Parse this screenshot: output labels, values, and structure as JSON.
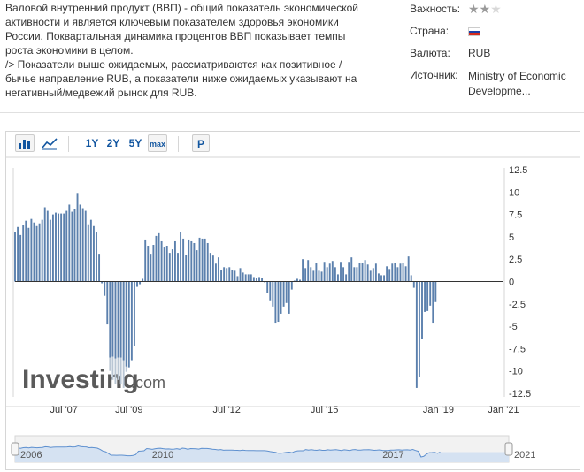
{
  "description": {
    "paragraph": "Валовой внутренний продукт (ВВП) - общий показатель экономической активности и является ключевым показателем здоровья экономики России. Поквартальная динамика процентов ВВП показывает темпы роста экономики в целом.",
    "note": "/> Показатели выше ожидаемых, рассматриваются как позитивное / бычье направление RUB, а показатели ниже ожидаемых указывают на негативный/медвежий рынок для RUB."
  },
  "info": {
    "importance_label": "Важность:",
    "importance_stars": 2,
    "importance_max": 3,
    "country_label": "Страна:",
    "country_icon": "russia-flag-icon",
    "currency_label": "Валюта:",
    "currency_value": "RUB",
    "source_label": "Источник:",
    "source_value": "Ministry of Economic Developme..."
  },
  "toolbar": {
    "bar_chart_icon": "bar-chart-icon",
    "line_chart_icon": "line-chart-icon",
    "range_1y": "1Y",
    "range_2y": "2Y",
    "range_5y": "5Y",
    "range_max": "max",
    "p_button": "P"
  },
  "watermark": {
    "brand": "Investing",
    "suffix": ".com"
  },
  "colors": {
    "bar": "#5b80ad",
    "bar_forecast": "#b9c6d4",
    "link": "#1256a0",
    "navigator_fill": "#d5e2f2",
    "navigator_line": "#5e90cf"
  },
  "chart_data": {
    "type": "bar",
    "title": "",
    "xlabel": "",
    "ylabel": "",
    "ylim": [
      -12.5,
      12.5
    ],
    "y_ticks": [
      "12.5",
      "10",
      "7.5",
      "5",
      "2.5",
      "0",
      "-2.5",
      "-5",
      "-7.5",
      "-10",
      "-12.5"
    ],
    "x_start": "2006-01",
    "x_end": "2021-01",
    "x_ticks": [
      {
        "date": "2007-07",
        "label": "Jul '07"
      },
      {
        "date": "2009-07",
        "label": "Jul '09"
      },
      {
        "date": "2012-07",
        "label": "Jul '12"
      },
      {
        "date": "2015-07",
        "label": "Jul '15"
      },
      {
        "date": "2019-01",
        "label": "Jan '19"
      },
      {
        "date": "2021-01",
        "label": "Jan '21"
      }
    ],
    "grid": false,
    "series": [
      {
        "values": [
          {
            "date": "2006-01",
            "actual": 5.5
          },
          {
            "date": "2006-02",
            "actual": 6.1
          },
          {
            "date": "2006-03",
            "actual": 5.2
          },
          {
            "date": "2006-04",
            "actual": 6.3
          },
          {
            "date": "2006-05",
            "actual": 6.8
          },
          {
            "date": "2006-06",
            "actual": 6.0
          },
          {
            "date": "2006-07",
            "actual": 7.0
          },
          {
            "date": "2006-08",
            "actual": 6.6
          },
          {
            "date": "2006-09",
            "actual": 6.2
          },
          {
            "date": "2006-10",
            "actual": 6.5
          },
          {
            "date": "2006-11",
            "actual": 6.9
          },
          {
            "date": "2006-12",
            "actual": 8.3
          },
          {
            "date": "2007-01",
            "actual": 7.9
          },
          {
            "date": "2007-02",
            "actual": 6.9
          },
          {
            "date": "2007-03",
            "actual": 7.5
          },
          {
            "date": "2007-04",
            "actual": 7.7
          },
          {
            "date": "2007-05",
            "actual": 7.6
          },
          {
            "date": "2007-06",
            "actual": 7.6
          },
          {
            "date": "2007-07",
            "actual": 7.6
          },
          {
            "date": "2007-08",
            "actual": 7.9
          },
          {
            "date": "2007-09",
            "actual": 8.6
          },
          {
            "date": "2007-10",
            "actual": 7.8
          },
          {
            "date": "2007-11",
            "actual": 8.1
          },
          {
            "date": "2007-12",
            "actual": 9.9
          },
          {
            "date": "2008-01",
            "actual": 8.6
          },
          {
            "date": "2008-02",
            "actual": 8.2
          },
          {
            "date": "2008-03",
            "actual": 7.9
          },
          {
            "date": "2008-04",
            "actual": 6.4
          },
          {
            "date": "2008-05",
            "actual": 6.9
          },
          {
            "date": "2008-06",
            "actual": 6.2
          },
          {
            "date": "2008-07",
            "actual": 5.5
          },
          {
            "date": "2008-08",
            "actual": 3.1
          },
          {
            "date": "2008-09",
            "actual": -0.2
          },
          {
            "date": "2008-10",
            "actual": -1.6
          },
          {
            "date": "2008-11",
            "actual": -4.8
          },
          {
            "date": "2008-12",
            "actual": -8.5,
            "forecast": -10.0
          },
          {
            "date": "2009-01",
            "actual": -8.4,
            "forecast": -11.0
          },
          {
            "date": "2009-02",
            "actual": -8.6,
            "forecast": -11.5
          },
          {
            "date": "2009-03",
            "actual": -8.5,
            "forecast": -11.0
          },
          {
            "date": "2009-04",
            "actual": -8.5,
            "forecast": -11.5
          },
          {
            "date": "2009-05",
            "actual": -8.8,
            "forecast": -11.9
          },
          {
            "date": "2009-06",
            "actual": -9.5,
            "forecast": -10.1
          },
          {
            "date": "2009-07",
            "actual": -9.6
          },
          {
            "date": "2009-08",
            "actual": -8.8
          },
          {
            "date": "2009-09",
            "actual": -7.2
          },
          {
            "date": "2009-10",
            "actual": -0.6
          },
          {
            "date": "2009-11",
            "actual": -0.3
          },
          {
            "date": "2009-12",
            "actual": 0.3
          },
          {
            "date": "2010-01",
            "actual": 4.7
          },
          {
            "date": "2010-02",
            "actual": 4.0
          },
          {
            "date": "2010-03",
            "actual": 3.1
          },
          {
            "date": "2010-04",
            "actual": 4.1
          },
          {
            "date": "2010-05",
            "actual": 5.1
          },
          {
            "date": "2010-06",
            "actual": 5.4
          },
          {
            "date": "2010-07",
            "actual": 4.5
          },
          {
            "date": "2010-08",
            "actual": 3.8
          },
          {
            "date": "2010-09",
            "actual": 4.0
          },
          {
            "date": "2010-10",
            "actual": 3.2
          },
          {
            "date": "2010-11",
            "actual": 3.6
          },
          {
            "date": "2010-12",
            "actual": 4.5
          },
          {
            "date": "2011-01",
            "actual": 3.2
          },
          {
            "date": "2011-02",
            "actual": 5.5
          },
          {
            "date": "2011-03",
            "actual": 4.8
          },
          {
            "date": "2011-04",
            "actual": 3.0
          },
          {
            "date": "2011-05",
            "actual": 4.7
          },
          {
            "date": "2011-06",
            "actual": 4.5
          },
          {
            "date": "2011-07",
            "actual": 4.3
          },
          {
            "date": "2011-08",
            "actual": 3.5
          },
          {
            "date": "2011-09",
            "actual": 4.9
          },
          {
            "date": "2011-10",
            "actual": 4.8
          },
          {
            "date": "2011-11",
            "actual": 4.8
          },
          {
            "date": "2011-12",
            "actual": 4.3
          },
          {
            "date": "2012-01",
            "actual": 3.2
          },
          {
            "date": "2012-02",
            "actual": 2.9
          },
          {
            "date": "2012-03",
            "actual": 2.0
          },
          {
            "date": "2012-04",
            "actual": 2.7
          },
          {
            "date": "2012-05",
            "actual": 1.3
          },
          {
            "date": "2012-06",
            "actual": 1.6
          },
          {
            "date": "2012-07",
            "actual": 1.5
          },
          {
            "date": "2012-08",
            "actual": 1.6
          },
          {
            "date": "2012-09",
            "actual": 1.3
          },
          {
            "date": "2012-10",
            "actual": 1.2
          },
          {
            "date": "2012-11",
            "actual": 0.6
          },
          {
            "date": "2012-12",
            "actual": 1.5
          },
          {
            "date": "2013-01",
            "actual": 1.0
          },
          {
            "date": "2013-02",
            "actual": 0.8
          },
          {
            "date": "2013-03",
            "actual": 0.8
          },
          {
            "date": "2013-04",
            "actual": 0.8
          },
          {
            "date": "2013-05",
            "actual": 0.5
          },
          {
            "date": "2013-06",
            "actual": 0.4
          },
          {
            "date": "2013-07",
            "actual": 0.5
          },
          {
            "date": "2013-08",
            "actual": 0.4
          },
          {
            "date": "2013-09",
            "actual": -0.1
          },
          {
            "date": "2013-10",
            "actual": -1.3
          },
          {
            "date": "2013-11",
            "actual": -2.1
          },
          {
            "date": "2013-12",
            "actual": -2.8
          },
          {
            "date": "2014-01",
            "actual": -4.6
          },
          {
            "date": "2014-02",
            "actual": -4.5
          },
          {
            "date": "2014-03",
            "actual": -3.6
          },
          {
            "date": "2014-04",
            "actual": -2.8
          },
          {
            "date": "2014-05",
            "actual": -2.4
          },
          {
            "date": "2014-06",
            "actual": -3.6
          },
          {
            "date": "2014-07",
            "actual": -0.9
          },
          {
            "date": "2014-08",
            "actual": 0.1
          },
          {
            "date": "2014-09",
            "actual": 0.3
          },
          {
            "date": "2014-10",
            "actual": 0.2
          },
          {
            "date": "2014-11",
            "actual": 2.5
          },
          {
            "date": "2014-12",
            "actual": 1.5
          },
          {
            "date": "2015-01",
            "actual": 2.4
          },
          {
            "date": "2015-02",
            "actual": 1.6
          },
          {
            "date": "2015-03",
            "actual": 1.2
          },
          {
            "date": "2015-04",
            "actual": 2.1
          },
          {
            "date": "2015-05",
            "actual": 1.2
          },
          {
            "date": "2015-06",
            "actual": 1.1
          },
          {
            "date": "2015-07",
            "actual": 2.2
          },
          {
            "date": "2015-08",
            "actual": 1.6
          },
          {
            "date": "2015-09",
            "actual": 2.0
          },
          {
            "date": "2015-10",
            "actual": 2.3
          },
          {
            "date": "2015-11",
            "actual": 1.6
          },
          {
            "date": "2015-12",
            "actual": 0.8
          },
          {
            "date": "2016-01",
            "actual": 2.2
          },
          {
            "date": "2016-02",
            "actual": 1.6
          },
          {
            "date": "2016-03",
            "actual": 0.8
          },
          {
            "date": "2016-04",
            "actual": 2.2
          },
          {
            "date": "2016-05",
            "actual": 2.7
          },
          {
            "date": "2016-06",
            "actual": 1.6
          },
          {
            "date": "2016-07",
            "actual": 1.6
          },
          {
            "date": "2016-08",
            "actual": 2.1
          },
          {
            "date": "2016-09",
            "actual": 2.1
          },
          {
            "date": "2016-10",
            "actual": 2.4
          },
          {
            "date": "2016-11",
            "actual": 1.9
          },
          {
            "date": "2016-12",
            "actual": 1.2
          },
          {
            "date": "2017-01",
            "actual": 1.5
          },
          {
            "date": "2017-02",
            "actual": 2.0
          },
          {
            "date": "2017-03",
            "actual": 0.9
          },
          {
            "date": "2017-04",
            "actual": 0.7
          },
          {
            "date": "2017-05",
            "actual": 0.7
          },
          {
            "date": "2017-06",
            "actual": 1.7
          },
          {
            "date": "2017-07",
            "actual": 1.4
          },
          {
            "date": "2017-08",
            "actual": 2.0
          },
          {
            "date": "2017-09",
            "actual": 2.1
          },
          {
            "date": "2017-10",
            "actual": 1.6
          },
          {
            "date": "2017-11",
            "actual": 2.0
          },
          {
            "date": "2017-12",
            "actual": 2.1
          },
          {
            "date": "2018-01",
            "actual": 1.7
          },
          {
            "date": "2018-02",
            "actual": 2.8
          },
          {
            "date": "2018-03",
            "actual": 0.7
          },
          {
            "date": "2018-04",
            "actual": -0.7
          },
          {
            "date": "2018-05",
            "actual": -11.9
          },
          {
            "date": "2018-06",
            "actual": -10.7
          },
          {
            "date": "2018-07",
            "actual": -6.4
          },
          {
            "date": "2018-08",
            "actual": -3.4
          },
          {
            "date": "2018-09",
            "actual": -3.3
          },
          {
            "date": "2018-10",
            "actual": -2.7
          },
          {
            "date": "2018-11",
            "actual": -4.6
          },
          {
            "date": "2018-12",
            "actual": -2.3
          }
        ]
      }
    ],
    "navigator": {
      "labels": [
        "2006",
        "2010",
        "2017",
        "2021"
      ]
    }
  }
}
